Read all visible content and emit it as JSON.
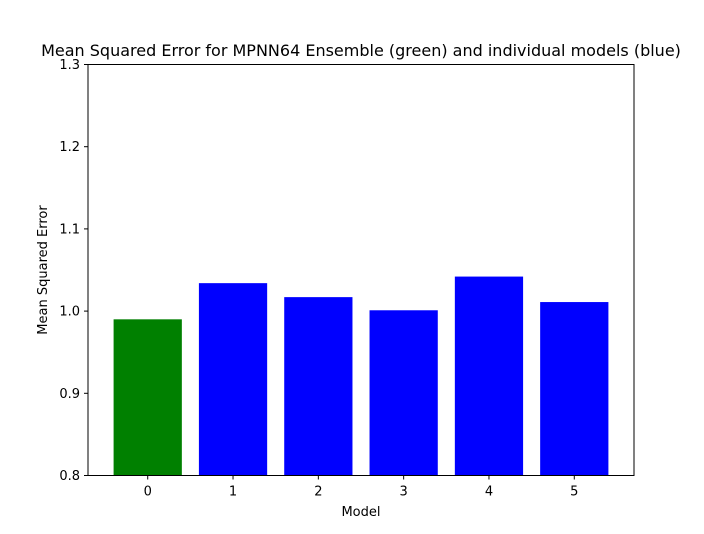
{
  "chart_data": {
    "type": "bar",
    "title": "Mean Squared Error for MPNN64 Ensemble (green) and individual models (blue)",
    "xlabel": "Model",
    "ylabel": "Mean Squared Error",
    "categories": [
      "0",
      "1",
      "2",
      "3",
      "4",
      "5"
    ],
    "values": [
      0.99,
      1.034,
      1.017,
      1.001,
      1.042,
      1.011
    ],
    "bar_colors": [
      "#008000",
      "#0000ff",
      "#0000ff",
      "#0000ff",
      "#0000ff",
      "#0000ff"
    ],
    "ylim": [
      0.8,
      1.3
    ],
    "yticks": [
      "0.8",
      "0.9",
      "1.0",
      "1.1",
      "1.2",
      "1.3"
    ],
    "grid": false
  }
}
